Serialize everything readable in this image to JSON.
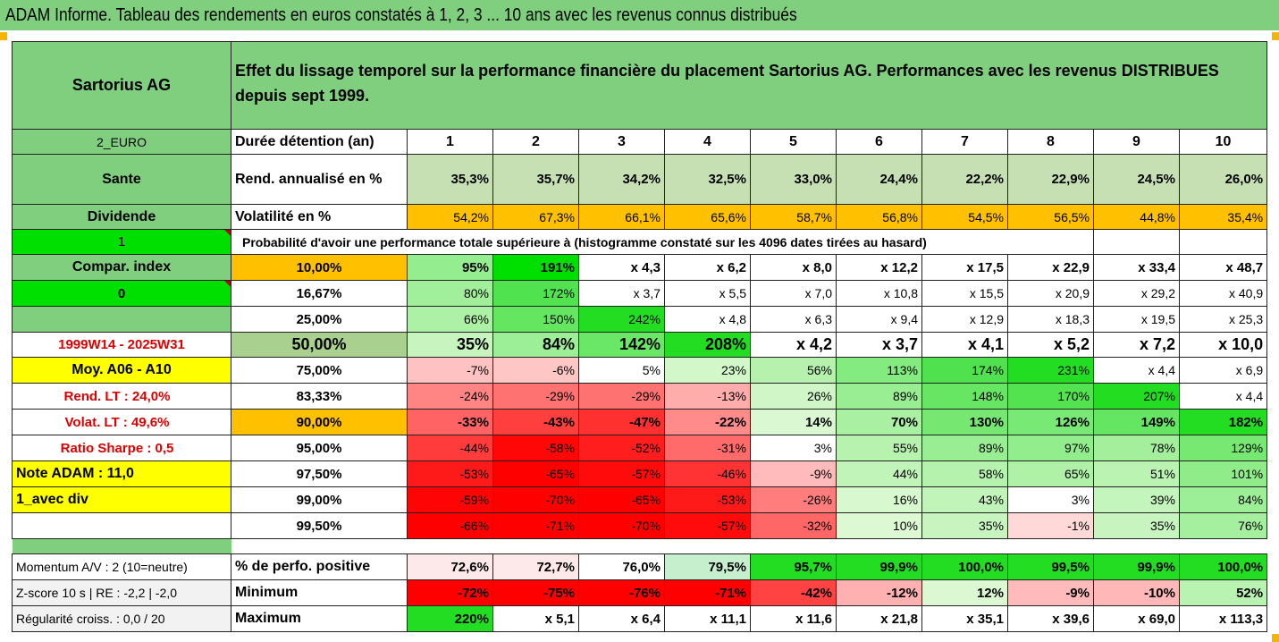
{
  "title": "ADAM Informe. Tableau des rendements en euros constatés à 1, 2, 3 ... 10 ans avec les revenus connus distribués",
  "company": "Sartorius AG",
  "description": "Effet du lissage temporel sur la performance financière du placement Sartorius AG. Performances avec les revenus DISTRIBUES depuis sept 1999.",
  "left": {
    "currency": "2_EURO",
    "sector": "Sante",
    "mode": "Dividende",
    "flag1": "1",
    "compar_label": "Compar. index",
    "flag2": "0",
    "period": "1999W14 - 2025W31",
    "avg": "Moy. A06 - A10",
    "rend_lt": "Rend. LT :   24,0%",
    "volat_lt": "Volat. LT :   49,6%",
    "sharpe": "Ratio Sharpe :    0,5",
    "note": "Note ADAM : 11,0",
    "avec_div": "1_avec div",
    "momentum": "Momentum A/V : 2 (10=neutre)",
    "zscore": "Z-score 10 s  |  RE : -2,2  |  -2,0",
    "regularite": "Régularité croiss. : 0,0 / 20"
  },
  "row_labels": {
    "duree": "Durée détention (an)",
    "rend": "Rend. annualisé en %",
    "vol": "Volatilité en %",
    "proba": "Probabilité d'avoir une performance totale supérieure à (histogramme constaté sur les 4096 dates tirées au hasard)",
    "pct_pos": "% de perfo. positive",
    "minimum": "Minimum",
    "maximum": "Maximum"
  },
  "years": [
    "1",
    "2",
    "3",
    "4",
    "5",
    "6",
    "7",
    "8",
    "9",
    "10"
  ],
  "rend": [
    "35,3%",
    "35,7%",
    "34,2%",
    "32,5%",
    "33,0%",
    "24,4%",
    "22,2%",
    "22,9%",
    "24,5%",
    "26,0%"
  ],
  "vol": [
    "54,2%",
    "67,3%",
    "66,1%",
    "65,6%",
    "58,7%",
    "56,8%",
    "54,5%",
    "56,5%",
    "44,8%",
    "35,4%"
  ],
  "quantiles": [
    {
      "q": "10,00%",
      "v": [
        "95%",
        "191%",
        "x 4,3",
        "x 6,2",
        "x 8,0",
        "x 12,2",
        "x 17,5",
        "x 22,9",
        "x 33,4",
        "x 48,7"
      ]
    },
    {
      "q": "16,67%",
      "v": [
        "80%",
        "172%",
        "x 3,7",
        "x 5,5",
        "x 7,0",
        "x 10,8",
        "x 15,5",
        "x 20,9",
        "x 29,2",
        "x 40,9"
      ]
    },
    {
      "q": "25,00%",
      "v": [
        "66%",
        "150%",
        "242%",
        "x 4,8",
        "x 6,3",
        "x 9,4",
        "x 12,9",
        "x 18,3",
        "x 19,5",
        "x 25,3"
      ]
    },
    {
      "q": "50,00%",
      "v": [
        "35%",
        "84%",
        "142%",
        "208%",
        "x 4,2",
        "x 3,7",
        "x 4,1",
        "x 5,2",
        "x 7,2",
        "x 10,0"
      ]
    },
    {
      "q": "75,00%",
      "v": [
        "-7%",
        "-6%",
        "5%",
        "23%",
        "56%",
        "113%",
        "174%",
        "231%",
        "x 4,4",
        "x 6,9"
      ]
    },
    {
      "q": "83,33%",
      "v": [
        "-24%",
        "-29%",
        "-29%",
        "-13%",
        "26%",
        "89%",
        "148%",
        "170%",
        "207%",
        "x 4,4"
      ]
    },
    {
      "q": "90,00%",
      "v": [
        "-33%",
        "-43%",
        "-47%",
        "-22%",
        "14%",
        "70%",
        "130%",
        "126%",
        "149%",
        "182%"
      ]
    },
    {
      "q": "95,00%",
      "v": [
        "-44%",
        "-58%",
        "-52%",
        "-31%",
        "3%",
        "55%",
        "89%",
        "97%",
        "78%",
        "129%"
      ]
    },
    {
      "q": "97,50%",
      "v": [
        "-53%",
        "-65%",
        "-57%",
        "-46%",
        "-9%",
        "44%",
        "58%",
        "65%",
        "51%",
        "101%"
      ]
    },
    {
      "q": "99,00%",
      "v": [
        "-59%",
        "-70%",
        "-65%",
        "-53%",
        "-26%",
        "16%",
        "43%",
        "3%",
        "39%",
        "84%"
      ]
    },
    {
      "q": "99,50%",
      "v": [
        "-66%",
        "-71%",
        "-70%",
        "-57%",
        "-32%",
        "10%",
        "35%",
        "-1%",
        "35%",
        "76%"
      ]
    }
  ],
  "pct_pos": [
    "72,6%",
    "72,7%",
    "76,0%",
    "79,5%",
    "95,7%",
    "99,9%",
    "100,0%",
    "99,5%",
    "99,9%",
    "100,0%"
  ],
  "minimum": [
    "-72%",
    "-75%",
    "-76%",
    "-71%",
    "-42%",
    "-12%",
    "12%",
    "-9%",
    "-10%",
    "52%"
  ],
  "maximum": [
    "220%",
    "x 5,1",
    "x 6,4",
    "x 11,1",
    "x 11,6",
    "x 21,8",
    "x 35,1",
    "x 39,6",
    "x 69,0",
    "x 113,3"
  ],
  "colors": {
    "header_green": "#7fcf7f",
    "bright_green": "#00e000",
    "orange": "#ffc000",
    "yellow": "#ffff00",
    "red_text": "#e00000",
    "rend_green": "#c6e0b4",
    "red_strong": "#ff0000",
    "green_strong": "#3ad83a"
  }
}
